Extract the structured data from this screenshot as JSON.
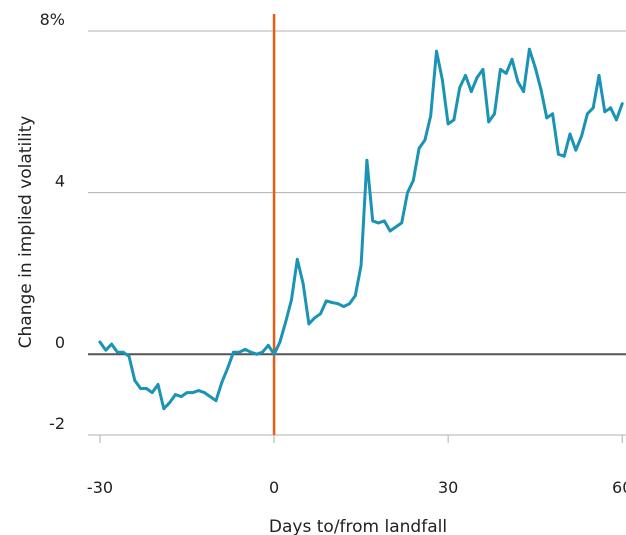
{
  "chart_data": {
    "type": "line",
    "title": "",
    "xlabel": "Days to/from landfall",
    "ylabel": "Change in implied volatility",
    "xlim": [
      -30,
      61
    ],
    "ylim": [
      -2,
      8
    ],
    "x_ticks": [
      {
        "value": -30,
        "label": "-30"
      },
      {
        "value": 0,
        "label": "0"
      },
      {
        "value": 30,
        "label": "30"
      },
      {
        "value": 60,
        "label": "60"
      }
    ],
    "y_ticks": [
      {
        "value": 8,
        "label": "8%"
      },
      {
        "value": 4,
        "label": "4"
      },
      {
        "value": 0,
        "label": "0"
      },
      {
        "value": -2,
        "label": "-2"
      }
    ],
    "grid": "horizontal",
    "landfall_day": 0,
    "colors": {
      "series": "#1b93b4",
      "landfall": "#e35d12",
      "zero": "#555555",
      "grid": "#b0b0b0"
    },
    "series": [
      {
        "x": [
          -30,
          -29,
          -28,
          -27,
          -26,
          -25,
          -24,
          -23,
          -22,
          -21,
          -20,
          -19,
          -18,
          -17,
          -16,
          -15,
          -14,
          -13,
          -12,
          -11,
          -10,
          -9,
          -8,
          -7,
          -6,
          -5,
          -4,
          -3,
          -2,
          -1,
          0,
          1,
          2,
          3,
          4,
          5,
          6,
          7,
          8,
          9,
          10,
          11,
          12,
          13,
          14,
          15,
          16,
          17,
          18,
          19,
          20,
          21,
          22,
          23,
          24,
          25,
          26,
          27,
          28,
          29,
          30,
          31,
          32,
          33,
          34,
          35,
          36,
          37,
          38,
          39,
          40,
          41,
          42,
          43,
          44,
          45,
          46,
          47,
          48,
          49,
          50,
          51,
          52,
          53,
          54,
          55,
          56,
          57,
          58,
          59,
          60
        ],
        "y": [
          0.3,
          0.1,
          0.25,
          0.05,
          0.05,
          -0.05,
          -0.65,
          -0.85,
          -0.85,
          -0.95,
          -0.75,
          -1.35,
          -1.2,
          -1.0,
          -1.05,
          -0.95,
          -0.95,
          -0.9,
          -0.95,
          -1.05,
          -1.15,
          -0.7,
          -0.35,
          0.05,
          0.05,
          0.12,
          0.05,
          0.0,
          0.05,
          0.22,
          0.0,
          0.3,
          0.8,
          1.35,
          2.35,
          1.75,
          0.75,
          0.9,
          1.0,
          1.32,
          1.28,
          1.25,
          1.18,
          1.25,
          1.45,
          2.2,
          4.8,
          3.3,
          3.25,
          3.3,
          3.05,
          3.15,
          3.25,
          4.0,
          4.3,
          5.1,
          5.3,
          5.9,
          7.5,
          6.8,
          5.7,
          5.8,
          6.6,
          6.9,
          6.5,
          6.85,
          7.05,
          5.75,
          5.95,
          7.05,
          6.95,
          7.3,
          6.75,
          6.5,
          7.55,
          7.1,
          6.55,
          5.85,
          5.95,
          4.95,
          4.9,
          5.45,
          5.05,
          5.4,
          5.95,
          6.1,
          6.9,
          6.0,
          6.1,
          5.8,
          6.2
        ]
      }
    ]
  }
}
